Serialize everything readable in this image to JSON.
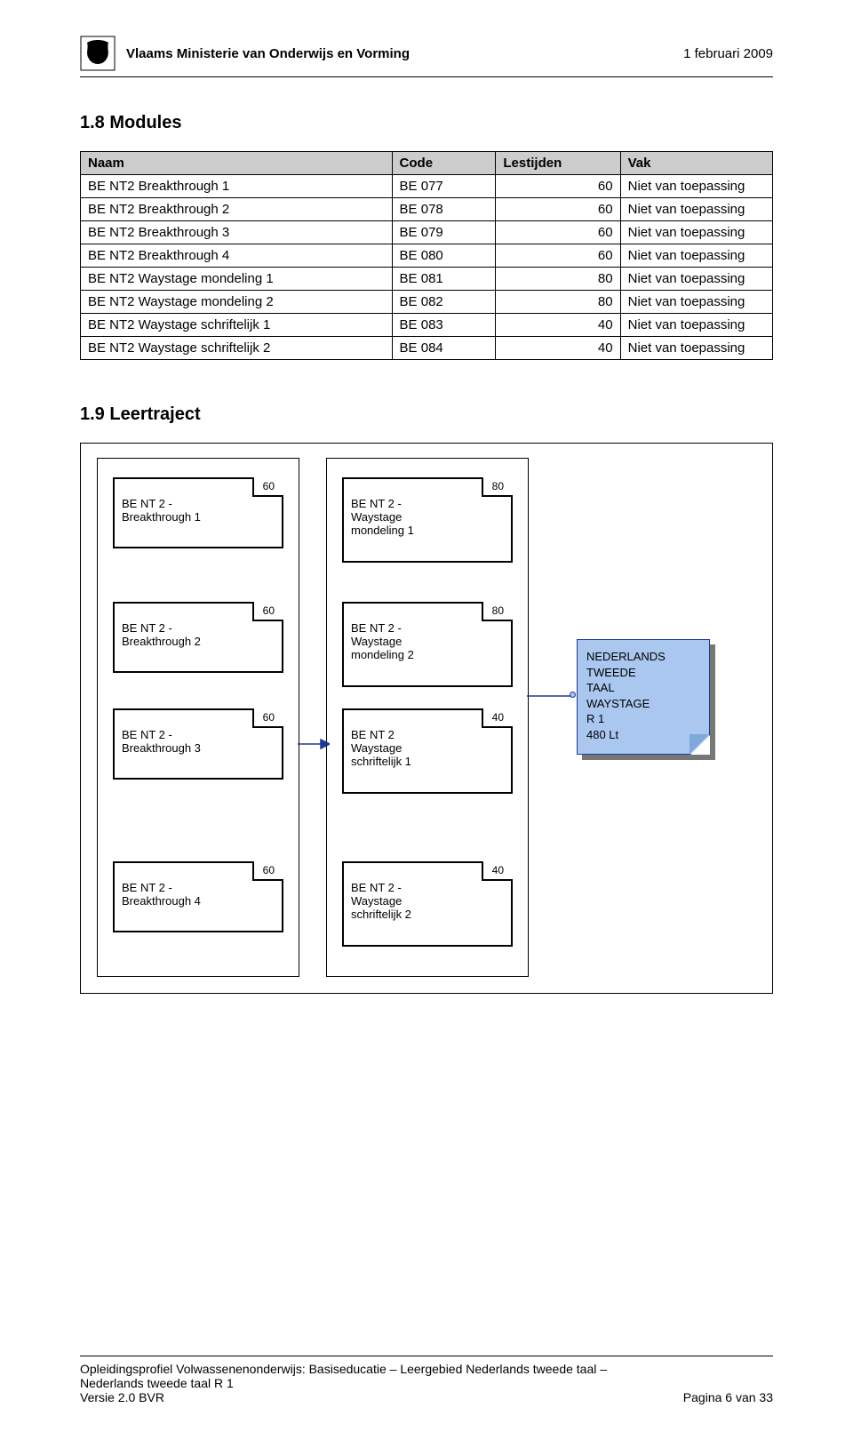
{
  "header": {
    "org": "Vlaams Ministerie van Onderwijs en Vorming",
    "date": "1 februari 2009"
  },
  "section_modules": {
    "heading": "1.8   Modules",
    "columns": [
      "Naam",
      "Code",
      "Lestijden",
      "Vak"
    ],
    "rows": [
      [
        "BE NT2 Breakthrough 1",
        "BE 077",
        "60",
        "Niet van toepassing"
      ],
      [
        "BE NT2 Breakthrough 2",
        "BE 078",
        "60",
        "Niet van toepassing"
      ],
      [
        "BE NT2 Breakthrough 3",
        "BE 079",
        "60",
        "Niet van toepassing"
      ],
      [
        "BE NT2 Breakthrough 4",
        "BE 080",
        "60",
        "Niet van toepassing"
      ],
      [
        "BE NT2 Waystage mondeling 1",
        "BE 081",
        "80",
        "Niet van toepassing"
      ],
      [
        "BE NT2 Waystage mondeling 2",
        "BE 082",
        "80",
        "Niet van toepassing"
      ],
      [
        "BE NT2 Waystage schriftelijk 1",
        "BE 083",
        "40",
        "Niet van toepassing"
      ],
      [
        "BE NT2 Waystage schriftelijk 2",
        "BE 084",
        "40",
        "Niet van toepassing"
      ]
    ]
  },
  "section_leertraject": {
    "heading": "1.9   Leertraject"
  },
  "diagram": {
    "boxes": {
      "bt1": {
        "label1": "BE NT 2 -",
        "label2": "Breakthrough 1",
        "hours": "60"
      },
      "bt2": {
        "label1": "BE NT 2 -",
        "label2": "Breakthrough 2",
        "hours": "60"
      },
      "bt3": {
        "label1": "BE NT 2 -",
        "label2": "Breakthrough 3",
        "hours": "60"
      },
      "bt4": {
        "label1": "BE NT 2 -",
        "label2": "Breakthrough 4",
        "hours": "60"
      },
      "wm1": {
        "label1": "BE NT 2 -",
        "label2": "Waystage",
        "label3": "mondeling 1",
        "hours": "80"
      },
      "wm2": {
        "label1": "BE NT 2 -",
        "label2": "Waystage",
        "label3": "mondeling 2",
        "hours": "80"
      },
      "ws1": {
        "label1": "BE NT 2",
        "label2": "Waystage",
        "label3": "schriftelijk 1",
        "hours": "40"
      },
      "ws2": {
        "label1": "BE NT 2 -",
        "label2": "Waystage",
        "label3": "schriftelijk 2",
        "hours": "40"
      }
    },
    "note": {
      "line1": "NEDERLANDS",
      "line2": "TWEEDE",
      "line3": "TAAL",
      "line4": "WAYSTAGE",
      "line5": "R 1",
      "line6": "480 Lt"
    }
  },
  "footer": {
    "line1": "Opleidingsprofiel Volwassenenonderwijs: Basiseducatie – Leergebied Nederlands tweede taal –",
    "line2": "Nederlands tweede taal R 1",
    "version": "Versie 2.0 BVR",
    "page": "Pagina 6 van 33"
  },
  "colors": {
    "table_header_bg": "#cccccc",
    "note_bg": "#a9c7ef",
    "note_border": "#1f3a93",
    "arrow": "#1f3a93"
  }
}
